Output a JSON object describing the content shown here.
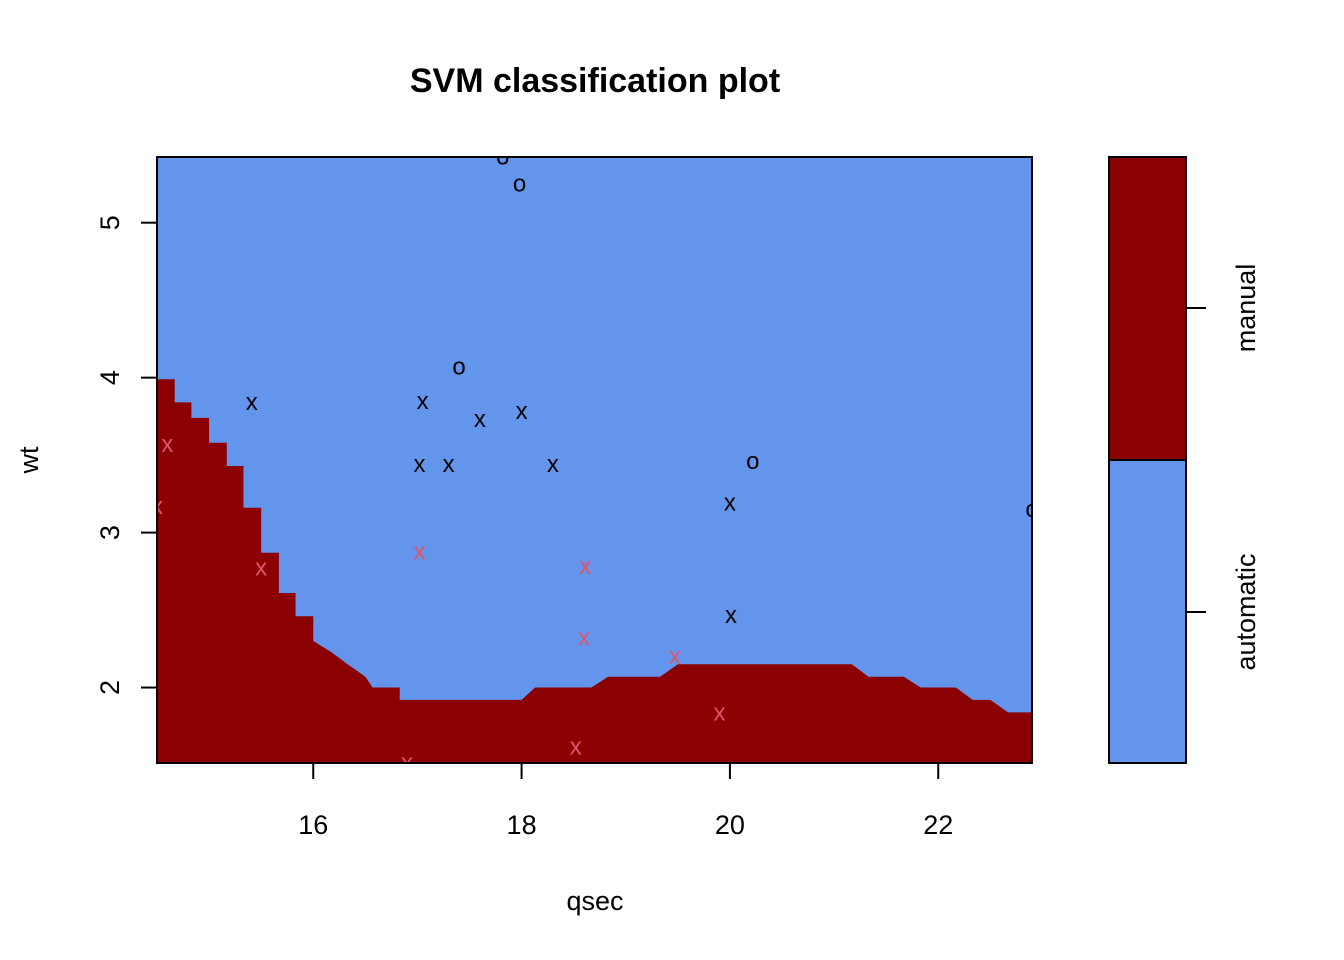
{
  "chart_data": {
    "type": "scatter",
    "title": "SVM classification plot",
    "xlabel": "qsec",
    "ylabel": "wt",
    "xlim": [
      14.5,
      22.9
    ],
    "ylim": [
      1.513,
      5.424
    ],
    "x_ticks": [
      16,
      18,
      20,
      22
    ],
    "y_ticks": [
      2,
      3,
      4,
      5
    ],
    "x_tick_labels": [
      "16",
      "18",
      "20",
      "22"
    ],
    "y_tick_labels": [
      "2",
      "3",
      "4",
      "5"
    ],
    "grid": false,
    "classes": [
      "automatic",
      "manual"
    ],
    "class_colors": {
      "automatic": "#6495ED",
      "manual": "#8B0000"
    },
    "point_colors": {
      "automatic": "#000000",
      "manual": "#DF536B"
    },
    "markers": {
      "support_vector": "x",
      "other": "o"
    },
    "legend": {
      "position": "right",
      "type": "colorbar",
      "labels": [
        "manual",
        "automatic"
      ]
    },
    "decision_boundary": [
      [
        14.5,
        3.99
      ],
      [
        14.67,
        3.99
      ],
      [
        14.67,
        3.84
      ],
      [
        14.83,
        3.84
      ],
      [
        14.83,
        3.74
      ],
      [
        15.0,
        3.74
      ],
      [
        15.0,
        3.58
      ],
      [
        15.17,
        3.58
      ],
      [
        15.17,
        3.43
      ],
      [
        15.33,
        3.43
      ],
      [
        15.33,
        3.16
      ],
      [
        15.5,
        3.16
      ],
      [
        15.5,
        2.87
      ],
      [
        15.67,
        2.87
      ],
      [
        15.67,
        2.61
      ],
      [
        15.83,
        2.61
      ],
      [
        15.83,
        2.46
      ],
      [
        16.0,
        2.46
      ],
      [
        16.0,
        2.3
      ],
      [
        16.17,
        2.23
      ],
      [
        16.33,
        2.15
      ],
      [
        16.5,
        2.07
      ],
      [
        16.57,
        2.0
      ],
      [
        16.83,
        2.0
      ],
      [
        16.83,
        1.92
      ],
      [
        17.33,
        1.92
      ],
      [
        17.9,
        1.92
      ],
      [
        18.0,
        1.92
      ],
      [
        18.13,
        2.0
      ],
      [
        18.67,
        2.0
      ],
      [
        18.83,
        2.07
      ],
      [
        19.33,
        2.07
      ],
      [
        19.5,
        2.15
      ],
      [
        21.17,
        2.15
      ],
      [
        21.33,
        2.07
      ],
      [
        21.67,
        2.07
      ],
      [
        21.83,
        2.0
      ],
      [
        22.17,
        2.0
      ],
      [
        22.33,
        1.92
      ],
      [
        22.5,
        1.92
      ],
      [
        22.67,
        1.84
      ],
      [
        22.9,
        1.84
      ]
    ],
    "series": [
      {
        "name": "automatic",
        "points": [
          {
            "x": 17.82,
            "y": 5.424,
            "marker": "o"
          },
          {
            "x": 17.98,
            "y": 5.25,
            "marker": "o"
          },
          {
            "x": 17.4,
            "y": 4.07,
            "marker": "o"
          },
          {
            "x": 20.22,
            "y": 3.46,
            "marker": "o"
          },
          {
            "x": 22.9,
            "y": 3.15,
            "marker": "o"
          },
          {
            "x": 15.41,
            "y": 3.84,
            "marker": "x"
          },
          {
            "x": 17.05,
            "y": 3.845,
            "marker": "x"
          },
          {
            "x": 17.6,
            "y": 3.73,
            "marker": "x"
          },
          {
            "x": 18.0,
            "y": 3.78,
            "marker": "x"
          },
          {
            "x": 17.02,
            "y": 3.44,
            "marker": "x"
          },
          {
            "x": 17.3,
            "y": 3.44,
            "marker": "x"
          },
          {
            "x": 18.3,
            "y": 3.44,
            "marker": "x"
          },
          {
            "x": 20.0,
            "y": 3.19,
            "marker": "x"
          },
          {
            "x": 20.01,
            "y": 2.465,
            "marker": "x"
          }
        ]
      },
      {
        "name": "manual",
        "points": [
          {
            "x": 14.6,
            "y": 3.57,
            "marker": "x"
          },
          {
            "x": 14.5,
            "y": 3.17,
            "marker": "x"
          },
          {
            "x": 15.5,
            "y": 2.77,
            "marker": "x"
          },
          {
            "x": 17.02,
            "y": 2.875,
            "marker": "x"
          },
          {
            "x": 18.61,
            "y": 2.78,
            "marker": "x"
          },
          {
            "x": 18.6,
            "y": 2.32,
            "marker": "x"
          },
          {
            "x": 19.47,
            "y": 2.2,
            "marker": "x"
          },
          {
            "x": 19.9,
            "y": 1.835,
            "marker": "x"
          },
          {
            "x": 18.52,
            "y": 1.615,
            "marker": "x"
          },
          {
            "x": 16.9,
            "y": 1.513,
            "marker": "x"
          }
        ]
      }
    ]
  }
}
